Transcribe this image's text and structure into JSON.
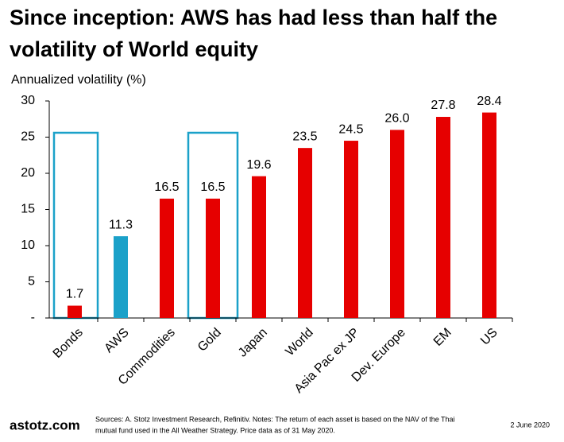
{
  "chart_data": {
    "type": "bar",
    "title_lines": [
      "Since inception: AWS has had less than half the",
      "volatility of World equity"
    ],
    "y_axis_label": "Annualized volatility (%)",
    "categories": [
      "Bonds",
      "AWS",
      "Commodities",
      "Gold",
      "Japan",
      "World",
      "Asia Pac ex JP",
      "Dev. Europe",
      "EM",
      "US"
    ],
    "values": [
      1.7,
      11.3,
      16.5,
      16.5,
      19.6,
      23.5,
      24.5,
      26.0,
      27.8,
      28.4
    ],
    "value_labels": [
      "1.7",
      "11.3",
      "16.5",
      "16.5",
      "19.6",
      "23.5",
      "24.5",
      "26.0",
      "27.8",
      "28.4"
    ],
    "colors": [
      "#e60000",
      "#1ba1c9",
      "#e60000",
      "#e60000",
      "#e60000",
      "#e60000",
      "#e60000",
      "#e60000",
      "#e60000",
      "#e60000"
    ],
    "ylim": [
      0,
      30
    ],
    "yticks": [
      {
        "value": 0,
        "label": "-"
      },
      5,
      10,
      15,
      20,
      25,
      30
    ],
    "footer": {
      "brand": "astotz.com",
      "sources": [
        "Sources: A. Stotz Investment Research, Refinitiv. Notes: The return of each asset is based on the NAV of the Thai",
        "mutual fund used in the All Weather Strategy. Price data as of 31 May 2020."
      ],
      "date": "2 June 2020"
    }
  }
}
